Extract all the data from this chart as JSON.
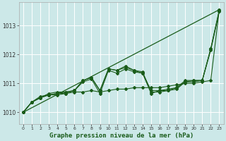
{
  "title": "",
  "xlabel": "Graphe pression niveau de la mer (hPa)",
  "background_color": "#cce8e8",
  "grid_color": "#ffffff",
  "line_color": "#1a5c1a",
  "xlim": [
    -0.5,
    23.5
  ],
  "ylim": [
    1009.6,
    1013.8
  ],
  "yticks": [
    1010,
    1011,
    1012,
    1013
  ],
  "xticks": [
    0,
    1,
    2,
    3,
    4,
    5,
    6,
    7,
    8,
    9,
    10,
    11,
    12,
    13,
    14,
    15,
    16,
    17,
    18,
    19,
    20,
    21,
    22,
    23
  ],
  "straight_line": [
    1010.0,
    1013.55
  ],
  "series": [
    [
      1010.0,
      1010.35,
      1010.5,
      1010.6,
      1010.65,
      1010.65,
      1010.75,
      1011.05,
      1011.15,
      1010.65,
      1011.45,
      1011.35,
      1011.5,
      1011.4,
      1011.35,
      1010.65,
      1010.75,
      1010.75,
      1010.85,
      1011.05,
      1011.1,
      1011.1,
      1012.15,
      1013.5
    ],
    [
      1010.0,
      1010.35,
      1010.5,
      1010.6,
      1010.65,
      1010.7,
      1010.75,
      1011.1,
      1011.2,
      1010.75,
      1011.5,
      1011.45,
      1011.55,
      1011.45,
      1011.35,
      1010.75,
      1010.75,
      1010.8,
      1010.85,
      1011.1,
      1011.1,
      1011.1,
      1012.2,
      1013.55
    ],
    [
      1010.0,
      1010.35,
      1010.5,
      1010.65,
      1010.7,
      1010.7,
      1010.75,
      1011.1,
      1011.2,
      1010.75,
      1011.5,
      1011.45,
      1011.6,
      1011.45,
      1011.4,
      1010.7,
      1010.7,
      1010.75,
      1010.8,
      1011.05,
      1011.05,
      1011.1,
      1012.2,
      1013.5
    ],
    [
      1010.0,
      1010.35,
      1010.55,
      1010.6,
      1010.6,
      1010.65,
      1010.7,
      1010.7,
      1010.75,
      1010.7,
      1010.75,
      1010.8,
      1010.8,
      1010.85,
      1010.85,
      1010.85,
      1010.85,
      1010.9,
      1010.95,
      1011.0,
      1011.0,
      1011.05,
      1011.1,
      1013.55
    ]
  ]
}
